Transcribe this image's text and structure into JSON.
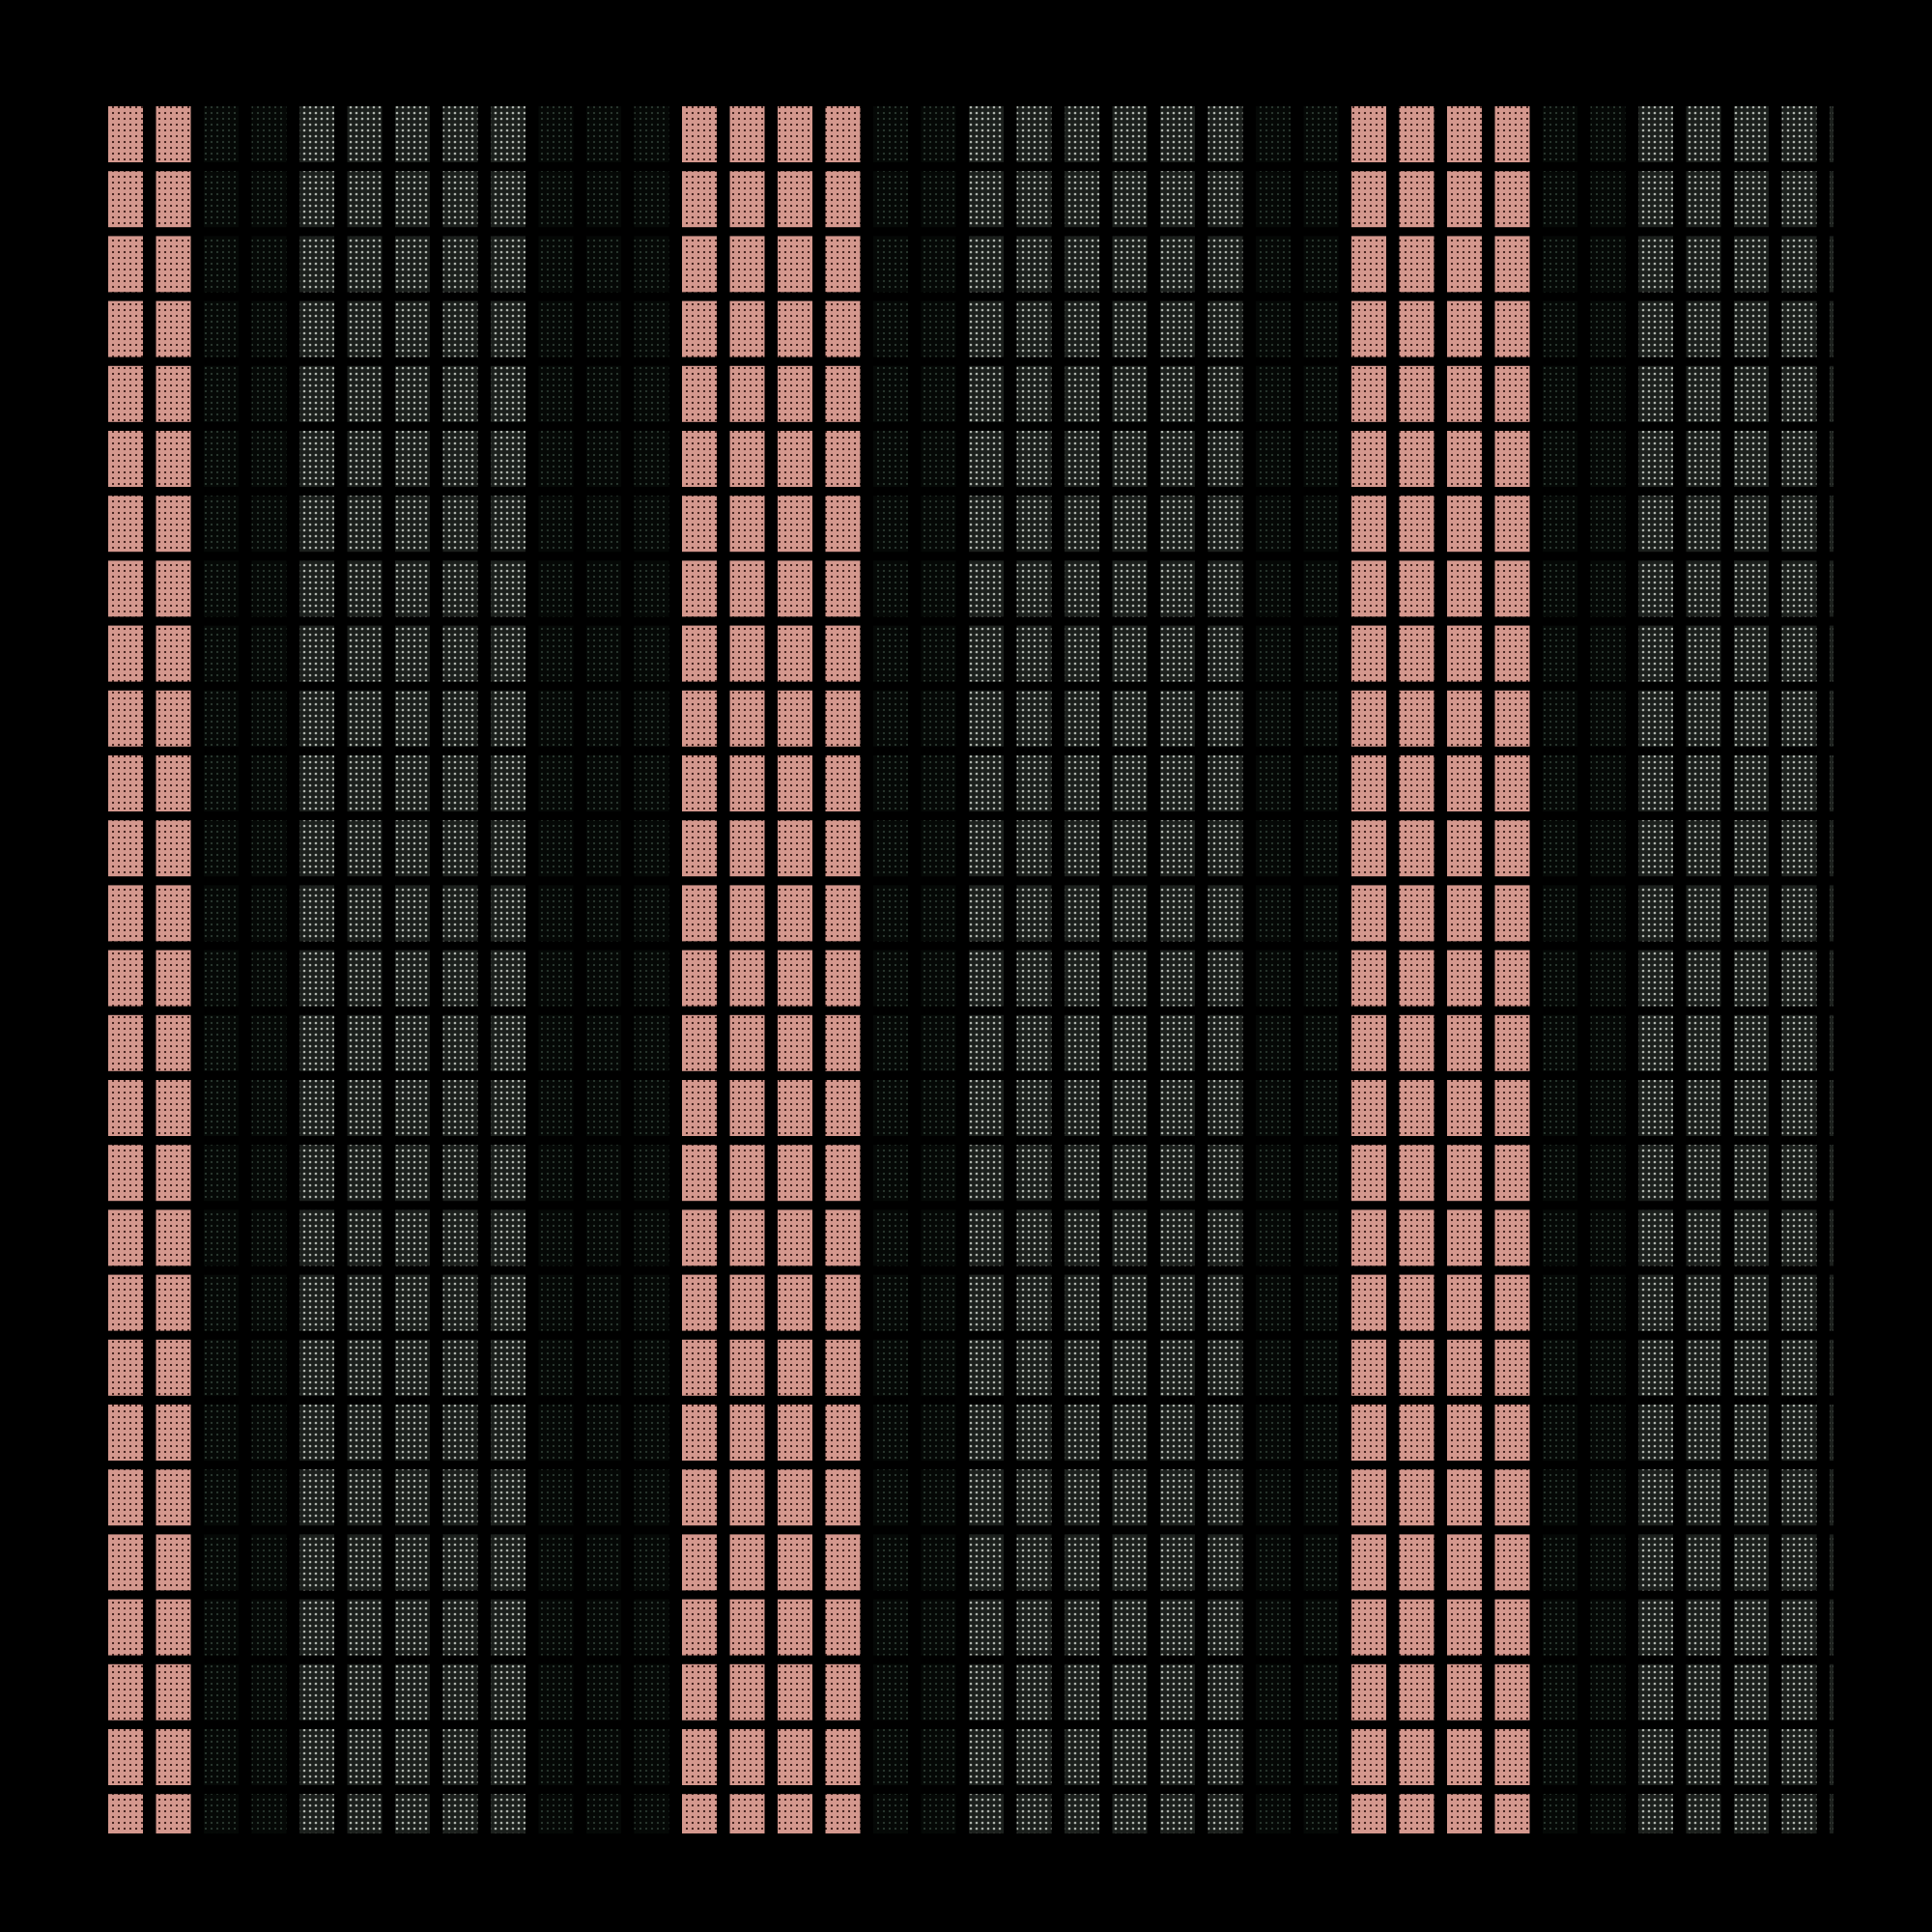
{
  "palette": {
    "background": "#000000",
    "red_dots": "#d4988e",
    "gray_dots": "#aeb4ad",
    "dark_dots": "#2c3a31"
  },
  "pattern": {
    "description_free": true,
    "column_types": [
      "red",
      "red",
      "dark",
      "dark",
      "gray",
      "gray",
      "gray",
      "gray",
      "gray",
      "dark",
      "dark",
      "dark",
      "red",
      "red",
      "red",
      "red",
      "dark",
      "dark",
      "gray",
      "gray",
      "gray",
      "gray",
      "gray",
      "gray",
      "dark",
      "dark",
      "red",
      "red",
      "red",
      "red",
      "dark",
      "dark",
      "gray",
      "gray",
      "gray",
      "gray",
      "partial"
    ],
    "row_count": 27
  }
}
